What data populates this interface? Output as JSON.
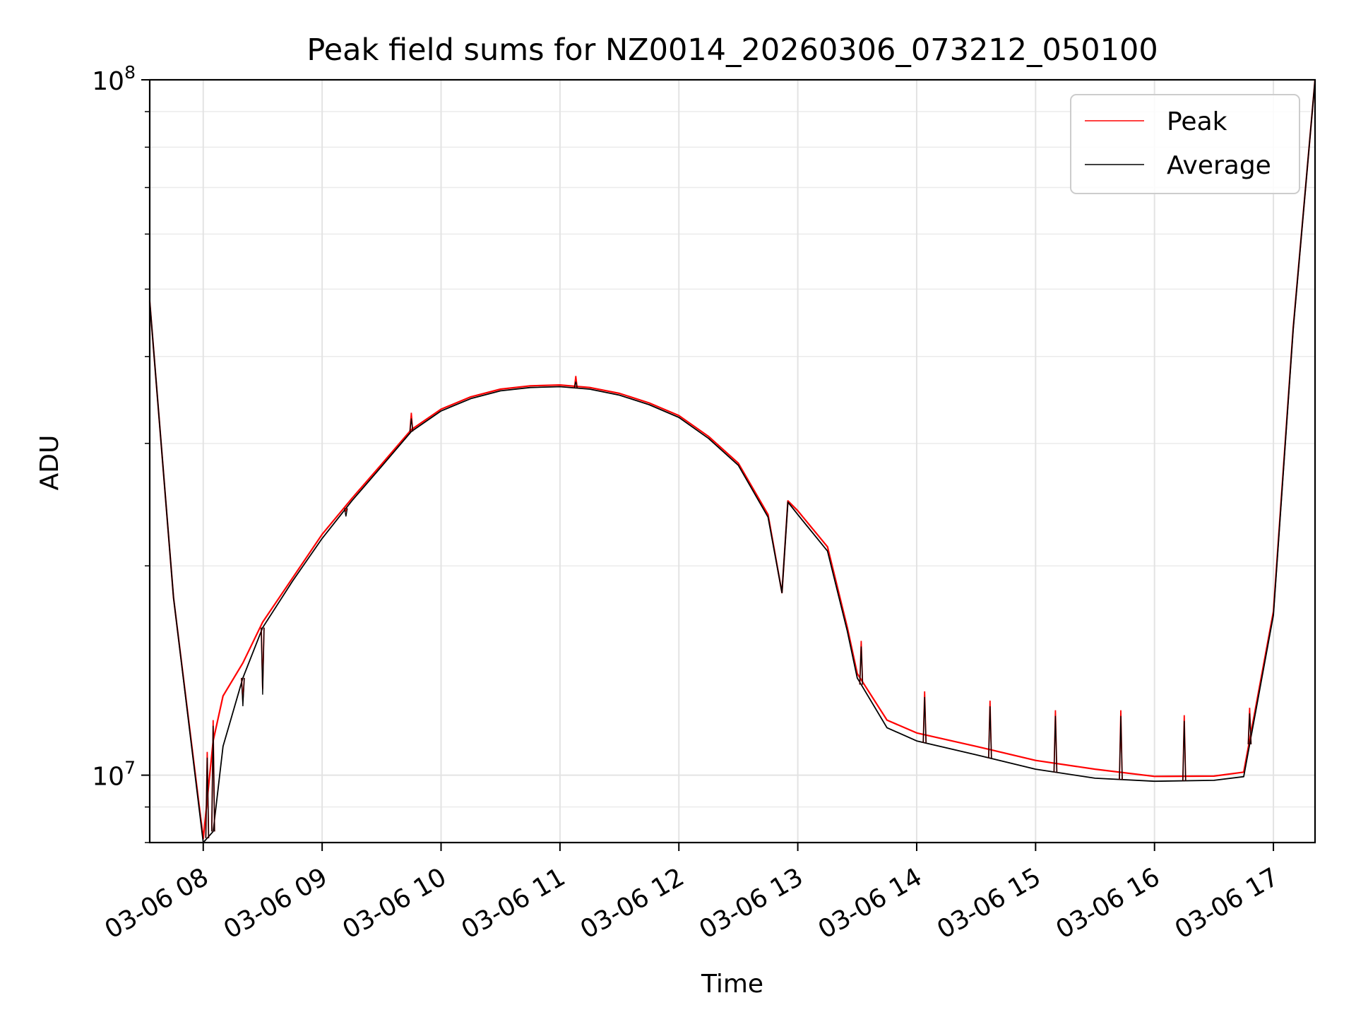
{
  "chart_data": {
    "type": "line",
    "title": "Peak field sums for NZ0014_20260306_073212_050100",
    "xlabel": "Time",
    "ylabel": "ADU",
    "y_scale": "log",
    "xlim": [
      "2026-03-06 07:33",
      "2026-03-06 17:21"
    ],
    "ylim": [
      8000000,
      100000000
    ],
    "grid": true,
    "legend_placement": "top-right",
    "x_ticks": [
      "03-06 08",
      "03-06 09",
      "03-06 10",
      "03-06 11",
      "03-06 12",
      "03-06 13",
      "03-06 14",
      "03-06 15",
      "03-06 16",
      "03-06 17"
    ],
    "y_ticks": [
      {
        "base": "10",
        "exp": "7",
        "value": 10000000
      },
      {
        "base": "10",
        "exp": "8",
        "value": 100000000
      }
    ],
    "series": [
      {
        "name": "Peak",
        "color": "#ff0000",
        "x": [
          "2026-03-06 07:33",
          "2026-03-06 07:45",
          "2026-03-06 08:00",
          "2026-03-06 08:05",
          "2026-03-06 08:10",
          "2026-03-06 08:20",
          "2026-03-06 08:30",
          "2026-03-06 08:45",
          "2026-03-06 09:00",
          "2026-03-06 09:15",
          "2026-03-06 09:30",
          "2026-03-06 09:45",
          "2026-03-06 10:00",
          "2026-03-06 10:15",
          "2026-03-06 10:30",
          "2026-03-06 10:45",
          "2026-03-06 11:00",
          "2026-03-06 11:15",
          "2026-03-06 11:30",
          "2026-03-06 11:45",
          "2026-03-06 12:00",
          "2026-03-06 12:15",
          "2026-03-06 12:30",
          "2026-03-06 12:45",
          "2026-03-06 12:52",
          "2026-03-06 12:55",
          "2026-03-06 13:00",
          "2026-03-06 13:15",
          "2026-03-06 13:25",
          "2026-03-06 13:30",
          "2026-03-06 13:45",
          "2026-03-06 14:00",
          "2026-03-06 14:30",
          "2026-03-06 15:00",
          "2026-03-06 15:30",
          "2026-03-06 16:00",
          "2026-03-06 16:30",
          "2026-03-06 16:45",
          "2026-03-06 17:00",
          "2026-03-06 17:10",
          "2026-03-06 17:21"
        ],
        "y": [
          48000000,
          18000000,
          8100000,
          11200000,
          13000000,
          14500000,
          16600000,
          19200000,
          22200000,
          25000000,
          28000000,
          31400000,
          33600000,
          35000000,
          35900000,
          36300000,
          36400000,
          36100000,
          35400000,
          34300000,
          32900000,
          30700000,
          28100000,
          23700000,
          18300000,
          24800000,
          24000000,
          21300000,
          16300000,
          14000000,
          12000000,
          11500000,
          11000000,
          10500000,
          10200000,
          9960000,
          9970000,
          10100000,
          17200000,
          44000000,
          100000000
        ]
      },
      {
        "name": "Average",
        "color": "#000000",
        "x": [
          "2026-03-06 07:33",
          "2026-03-06 07:45",
          "2026-03-06 08:00",
          "2026-03-06 08:05",
          "2026-03-06 08:10",
          "2026-03-06 08:20",
          "2026-03-06 08:30",
          "2026-03-06 08:45",
          "2026-03-06 09:00",
          "2026-03-06 09:15",
          "2026-03-06 09:30",
          "2026-03-06 09:45",
          "2026-03-06 10:00",
          "2026-03-06 10:15",
          "2026-03-06 10:30",
          "2026-03-06 10:45",
          "2026-03-06 11:00",
          "2026-03-06 11:15",
          "2026-03-06 11:30",
          "2026-03-06 11:45",
          "2026-03-06 12:00",
          "2026-03-06 12:15",
          "2026-03-06 12:30",
          "2026-03-06 12:45",
          "2026-03-06 12:52",
          "2026-03-06 12:55",
          "2026-03-06 13:00",
          "2026-03-06 13:15",
          "2026-03-06 13:25",
          "2026-03-06 13:30",
          "2026-03-06 13:45",
          "2026-03-06 14:00",
          "2026-03-06 14:30",
          "2026-03-06 15:00",
          "2026-03-06 15:30",
          "2026-03-06 16:00",
          "2026-03-06 16:30",
          "2026-03-06 16:45",
          "2026-03-06 17:00",
          "2026-03-06 17:10",
          "2026-03-06 17:21"
        ],
        "y": [
          48000000,
          18000000,
          8000000,
          8300000,
          11000000,
          13800000,
          16300000,
          19000000,
          21900000,
          24800000,
          27800000,
          31200000,
          33400000,
          34800000,
          35700000,
          36100000,
          36200000,
          35900000,
          35200000,
          34100000,
          32700000,
          30500000,
          27900000,
          23500000,
          18300000,
          24700000,
          23700000,
          21000000,
          16100000,
          13800000,
          11700000,
          11200000,
          10700000,
          10200000,
          9900000,
          9800000,
          9830000,
          9950000,
          17000000,
          43800000,
          100000000
        ]
      }
    ],
    "spikes": [
      {
        "x": "2026-03-06 08:02",
        "y": 10800000
      },
      {
        "x": "2026-03-06 08:05",
        "y": 12000000
      },
      {
        "x": "2026-03-06 08:20",
        "y": 12800000
      },
      {
        "x": "2026-03-06 08:30",
        "y": 13300000
      },
      {
        "x": "2026-03-06 09:12",
        "y": 24000000
      },
      {
        "x": "2026-03-06 09:45",
        "y": 33200000
      },
      {
        "x": "2026-03-06 11:08",
        "y": 37500000
      },
      {
        "x": "2026-03-06 13:32",
        "y": 15600000
      },
      {
        "x": "2026-03-06 14:04",
        "y": 13200000
      },
      {
        "x": "2026-03-06 14:37",
        "y": 12800000
      },
      {
        "x": "2026-03-06 15:10",
        "y": 12400000
      },
      {
        "x": "2026-03-06 15:43",
        "y": 12400000
      },
      {
        "x": "2026-03-06 16:15",
        "y": 12200000
      },
      {
        "x": "2026-03-06 16:48",
        "y": 12500000
      }
    ]
  }
}
